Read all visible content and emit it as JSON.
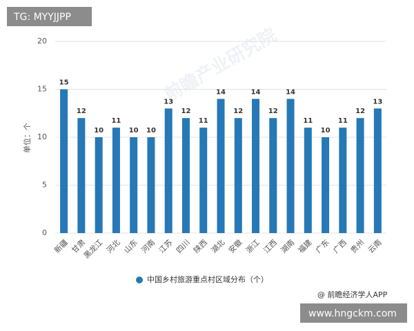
{
  "chart_data": {
    "type": "bar",
    "ylabel": "单位：个",
    "watermark": "前瞻产业研究院",
    "categories": [
      "新疆",
      "甘肃",
      "黑龙江",
      "河北",
      "山东",
      "河南",
      "江苏",
      "四川",
      "陕西",
      "湖北",
      "安徽",
      "浙江",
      "江西",
      "湖南",
      "福建",
      "广东",
      "广西",
      "贵州",
      "云南"
    ],
    "series": [
      {
        "name": "中国乡村旅游重点村区域分布（个）",
        "color": "#2678b6",
        "values": [
          15,
          12,
          10,
          11,
          10,
          10,
          13,
          12,
          11,
          14,
          12,
          14,
          12,
          14,
          11,
          10,
          11,
          12,
          13
        ]
      }
    ],
    "ylim": [
      0,
      20
    ],
    "yticks": [
      0,
      5,
      10,
      15,
      20
    ],
    "grid": true,
    "legend": "bottom"
  },
  "overlays": {
    "tag": "TG: MYYJJPP",
    "credit": "@ 前瞻经济学人APP",
    "site": "www.hngckm.com"
  }
}
